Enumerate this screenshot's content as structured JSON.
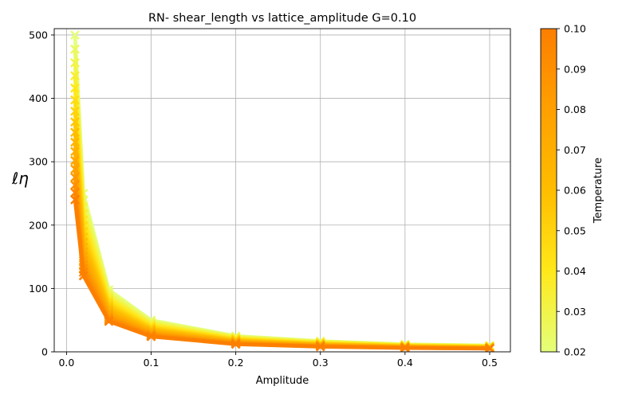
{
  "chart_data": {
    "type": "line",
    "title": "RN- shear_length vs lattice_amplitude G=0.10",
    "xlabel": "Amplitude",
    "ylabel": "ℓη",
    "xlim": [
      -0.0145,
      0.5245
    ],
    "ylim": [
      0,
      510
    ],
    "xticks": [
      0.0,
      0.1,
      0.2,
      0.3,
      0.4,
      0.5
    ],
    "xtick_labels": [
      "0.0",
      "0.1",
      "0.2",
      "0.3",
      "0.4",
      "0.5"
    ],
    "yticks": [
      0,
      100,
      200,
      300,
      400,
      500
    ],
    "ytick_labels": [
      "0",
      "100",
      "200",
      "300",
      "400",
      "500"
    ],
    "grid": true,
    "x": [
      0.01,
      0.02,
      0.05,
      0.1,
      0.2,
      0.3,
      0.4,
      0.5
    ],
    "series_count": 17,
    "temperature_range": [
      0.02,
      0.1
    ],
    "series_first": {
      "temperature": 0.02,
      "values": [
        500,
        250,
        98,
        50,
        25,
        17,
        12,
        10
      ]
    },
    "series_last": {
      "temperature": 0.1,
      "values": [
        240,
        120,
        48,
        24,
        12,
        8,
        6,
        5
      ]
    },
    "marker": "x",
    "colorbar": {
      "label": "Temperature",
      "range": [
        0.02,
        0.1
      ],
      "ticks": [
        0.02,
        0.03,
        0.04,
        0.05,
        0.06,
        0.07,
        0.08,
        0.09,
        0.1
      ],
      "tick_labels": [
        "0.02",
        "0.03",
        "0.04",
        "0.05",
        "0.06",
        "0.07",
        "0.08",
        "0.09",
        "0.10"
      ],
      "colormap": "Wistia",
      "colors": [
        "#e4ff7a",
        "#ffe81a",
        "#ffbd00",
        "#ffa000",
        "#fc7f00"
      ]
    }
  }
}
